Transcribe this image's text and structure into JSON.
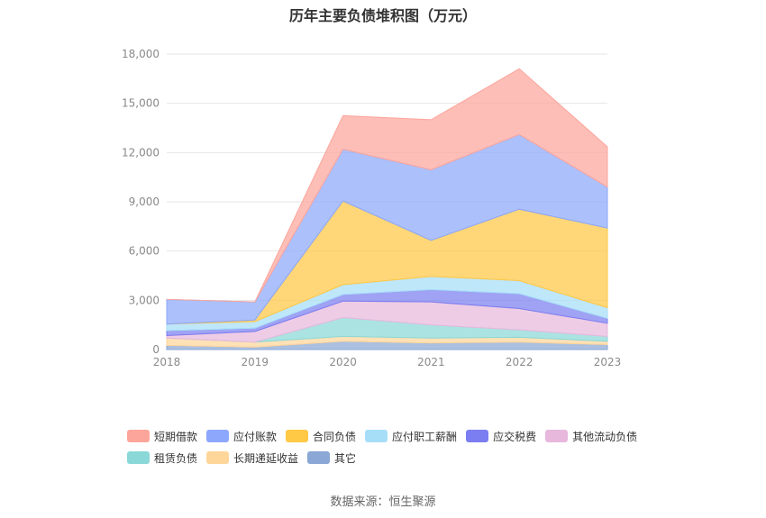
{
  "title": "历年主要负债堆积图（万元）",
  "source": "数据来源：恒生聚源",
  "chart_data": {
    "type": "area",
    "stacked": true,
    "title": "历年主要负债堆积图（万元）",
    "xlabel": "",
    "ylabel": "",
    "x": [
      "2018",
      "2019",
      "2020",
      "2021",
      "2022",
      "2023"
    ],
    "ylim": [
      0,
      18000
    ],
    "yticks": [
      0,
      3000,
      6000,
      9000,
      12000,
      15000,
      18000
    ],
    "ytick_labels": [
      "0",
      "3,000",
      "6,000",
      "9,000",
      "12,000",
      "15,000",
      "18,000"
    ],
    "grid": true,
    "legend_position": "bottom",
    "series": [
      {
        "name": "其它",
        "color": "#8aa7d6",
        "values": [
          250,
          150,
          500,
          400,
          450,
          300
        ]
      },
      {
        "name": "长期递延收益",
        "color": "#ffd69a",
        "values": [
          450,
          300,
          300,
          300,
          300,
          200
        ]
      },
      {
        "name": "租赁负债",
        "color": "#8ad8d8",
        "values": [
          0,
          0,
          1150,
          800,
          450,
          300
        ]
      },
      {
        "name": "其他流动负债",
        "color": "#e7b8dc",
        "values": [
          150,
          650,
          1000,
          1400,
          1300,
          800
        ]
      },
      {
        "name": "应交税费",
        "color": "#7b7ef0",
        "values": [
          300,
          200,
          400,
          750,
          900,
          300
        ]
      },
      {
        "name": "应付职工薪酬",
        "color": "#a6def8",
        "values": [
          400,
          400,
          600,
          800,
          800,
          650
        ]
      },
      {
        "name": "合同负债",
        "color": "#ffc845",
        "values": [
          0,
          100,
          5100,
          2200,
          4350,
          4850
        ]
      },
      {
        "name": "应付账款",
        "color": "#8ca7fb",
        "values": [
          1500,
          1100,
          3150,
          4300,
          4550,
          2500
        ]
      },
      {
        "name": "短期借款",
        "color": "#fca59b",
        "values": [
          0,
          0,
          2050,
          3050,
          4000,
          2450
        ]
      }
    ]
  }
}
